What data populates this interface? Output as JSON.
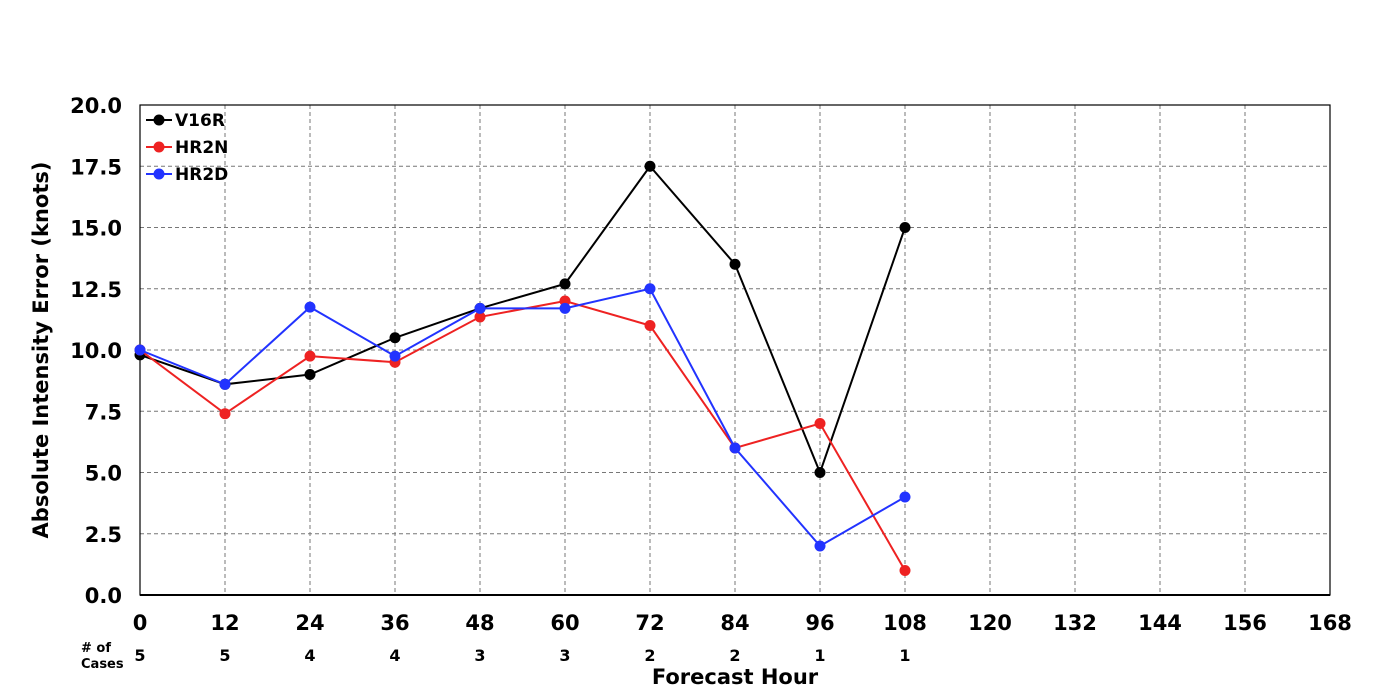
{
  "chart_data": {
    "type": "line",
    "title": "",
    "xlabel": "Forecast Hour",
    "ylabel": "Absolute Intensity Error (knots)",
    "x": [
      0,
      12,
      24,
      36,
      48,
      60,
      72,
      84,
      96,
      108,
      120,
      132,
      144,
      156,
      168
    ],
    "x_tick_labels": [
      "0",
      "12",
      "24",
      "36",
      "48",
      "60",
      "72",
      "84",
      "96",
      "108",
      "120",
      "132",
      "144",
      "156",
      "168"
    ],
    "y_tick_labels": [
      "0.0",
      "2.5",
      "5.0",
      "7.5",
      "10.0",
      "12.5",
      "15.0",
      "17.5",
      "20.0"
    ],
    "xlim": [
      0,
      168
    ],
    "ylim": [
      0,
      20
    ],
    "grid": true,
    "legend_position": "top-left",
    "series": [
      {
        "name": "V16R",
        "color": "#000000",
        "x": [
          0,
          12,
          24,
          36,
          48,
          60,
          72,
          84,
          96,
          108
        ],
        "values": [
          9.8,
          8.6,
          9.0,
          10.5,
          11.7,
          12.7,
          17.5,
          13.5,
          5.0,
          15.0
        ]
      },
      {
        "name": "HR2N",
        "color": "#ee2222",
        "x": [
          0,
          12,
          24,
          36,
          48,
          60,
          72,
          84,
          96,
          108
        ],
        "values": [
          10.0,
          7.4,
          9.75,
          9.5,
          11.35,
          12.0,
          11.0,
          6.0,
          7.0,
          1.0
        ]
      },
      {
        "name": "HR2D",
        "color": "#2233ff",
        "x": [
          0,
          12,
          24,
          36,
          48,
          60,
          72,
          84,
          96,
          108
        ],
        "values": [
          10.0,
          8.6,
          11.75,
          9.75,
          11.7,
          11.7,
          12.5,
          6.0,
          2.0,
          4.0
        ]
      }
    ],
    "cases_label": [
      "# of",
      "Cases"
    ],
    "cases": {
      "x": [
        0,
        12,
        24,
        36,
        48,
        60,
        72,
        84,
        96,
        108
      ],
      "values": [
        "5",
        "5",
        "4",
        "4",
        "3",
        "3",
        "2",
        "2",
        "1",
        "1"
      ]
    }
  }
}
